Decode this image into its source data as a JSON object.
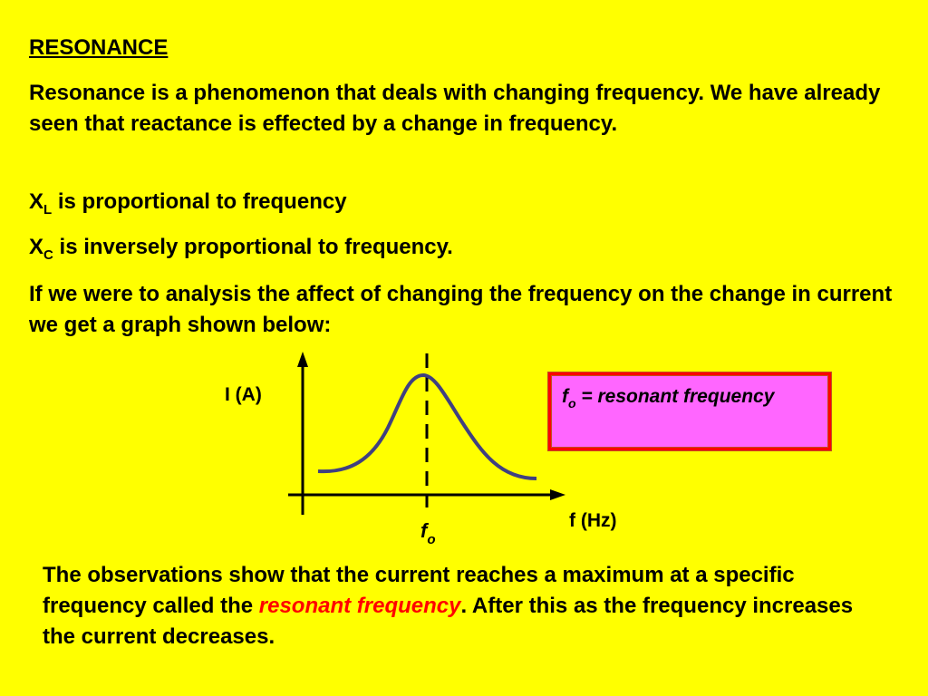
{
  "title": "RESONANCE",
  "intro": "Resonance is a phenomenon that deals with changing frequency. We have already seen that reactance is effected by a change in frequency.",
  "xl": {
    "symbol": "X",
    "sub": "L",
    "text": " is proportional to frequency"
  },
  "xc": {
    "symbol": "X",
    "sub": "C",
    "text": " is inversely proportional to frequency."
  },
  "para2": "If we were to analysis the affect of changing the frequency on the change in current we get a graph shown below:",
  "graph": {
    "y_label": "I (A)",
    "x_label": "f (Hz)",
    "fo_symbol": "f",
    "fo_sub": "o"
  },
  "definition": {
    "symbol": "f",
    "sub": "o",
    "text": " = resonant frequency"
  },
  "observation": {
    "before": "The observations show that the current reaches a maximum at a specific frequency called the ",
    "highlight": "resonant frequency",
    "after": ". After this as the frequency increases the current decreases."
  },
  "colors": {
    "background": "#ffff00",
    "curve": "#404080",
    "highlight": "#ff0000",
    "box_fill": "#ff66ff"
  }
}
